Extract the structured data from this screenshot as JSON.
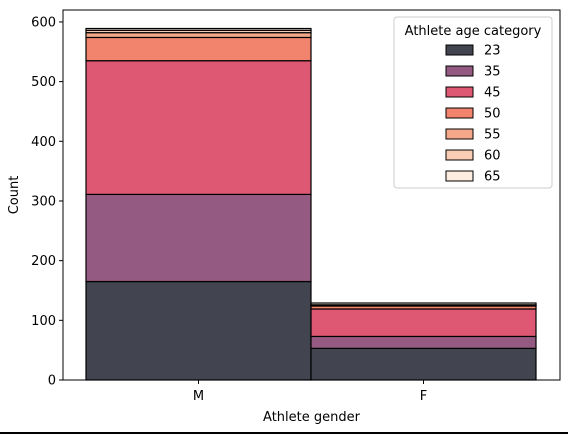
{
  "chart_data": {
    "type": "bar",
    "stacked": true,
    "xlabel": "Athlete gender",
    "ylabel": "Count",
    "categories": [
      "M",
      "F"
    ],
    "ylim": [
      0,
      620
    ],
    "yticks": [
      0,
      100,
      200,
      300,
      400,
      500,
      600
    ],
    "yticklabels": [
      "0",
      "100",
      "200",
      "300",
      "400",
      "500",
      "600"
    ],
    "legend": {
      "title": "Athlete age category",
      "placement": "top-right"
    },
    "series": [
      {
        "name": "23",
        "color": "#42444f",
        "values": [
          165,
          53
        ]
      },
      {
        "name": "35",
        "color": "#955a81",
        "values": [
          146,
          20
        ]
      },
      {
        "name": "45",
        "color": "#de5873",
        "values": [
          224,
          46
        ]
      },
      {
        "name": "50",
        "color": "#f2836d",
        "values": [
          39,
          5
        ]
      },
      {
        "name": "55",
        "color": "#f5a889",
        "values": [
          8,
          1
        ]
      },
      {
        "name": "60",
        "color": "#f8cdb3",
        "values": [
          4,
          1
        ]
      },
      {
        "name": "65",
        "color": "#fcece0",
        "values": [
          3,
          3
        ]
      }
    ]
  }
}
